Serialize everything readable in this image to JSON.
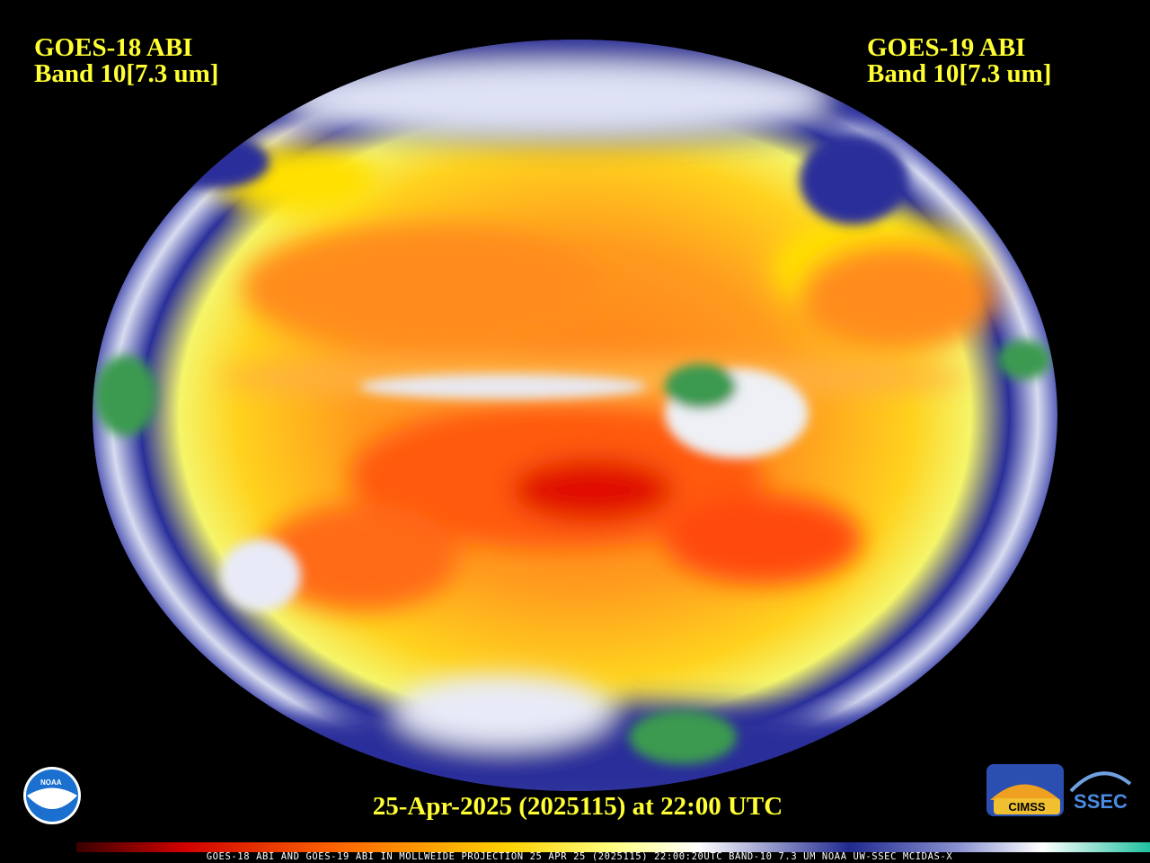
{
  "left_label": {
    "satellite": "GOES-18 ABI",
    "band": "Band 10[7.3 um]"
  },
  "right_label": {
    "satellite": "GOES-19 ABI",
    "band": "Band 10[7.3 um]"
  },
  "timestamp": "25-Apr-2025 (2025115) at 22:00 UTC",
  "footer": "GOES-18 ABI AND GOES-19 ABI IN MOLLWEIDE PROJECTION 25 APR 25 (2025115) 22:00:20UTC BAND-10 7.3 UM NOAA UW-SSEC MCIDAS-X",
  "logos": {
    "noaa": "NOAA",
    "cimss": "CIMSS",
    "ssec": "SSEC"
  }
}
